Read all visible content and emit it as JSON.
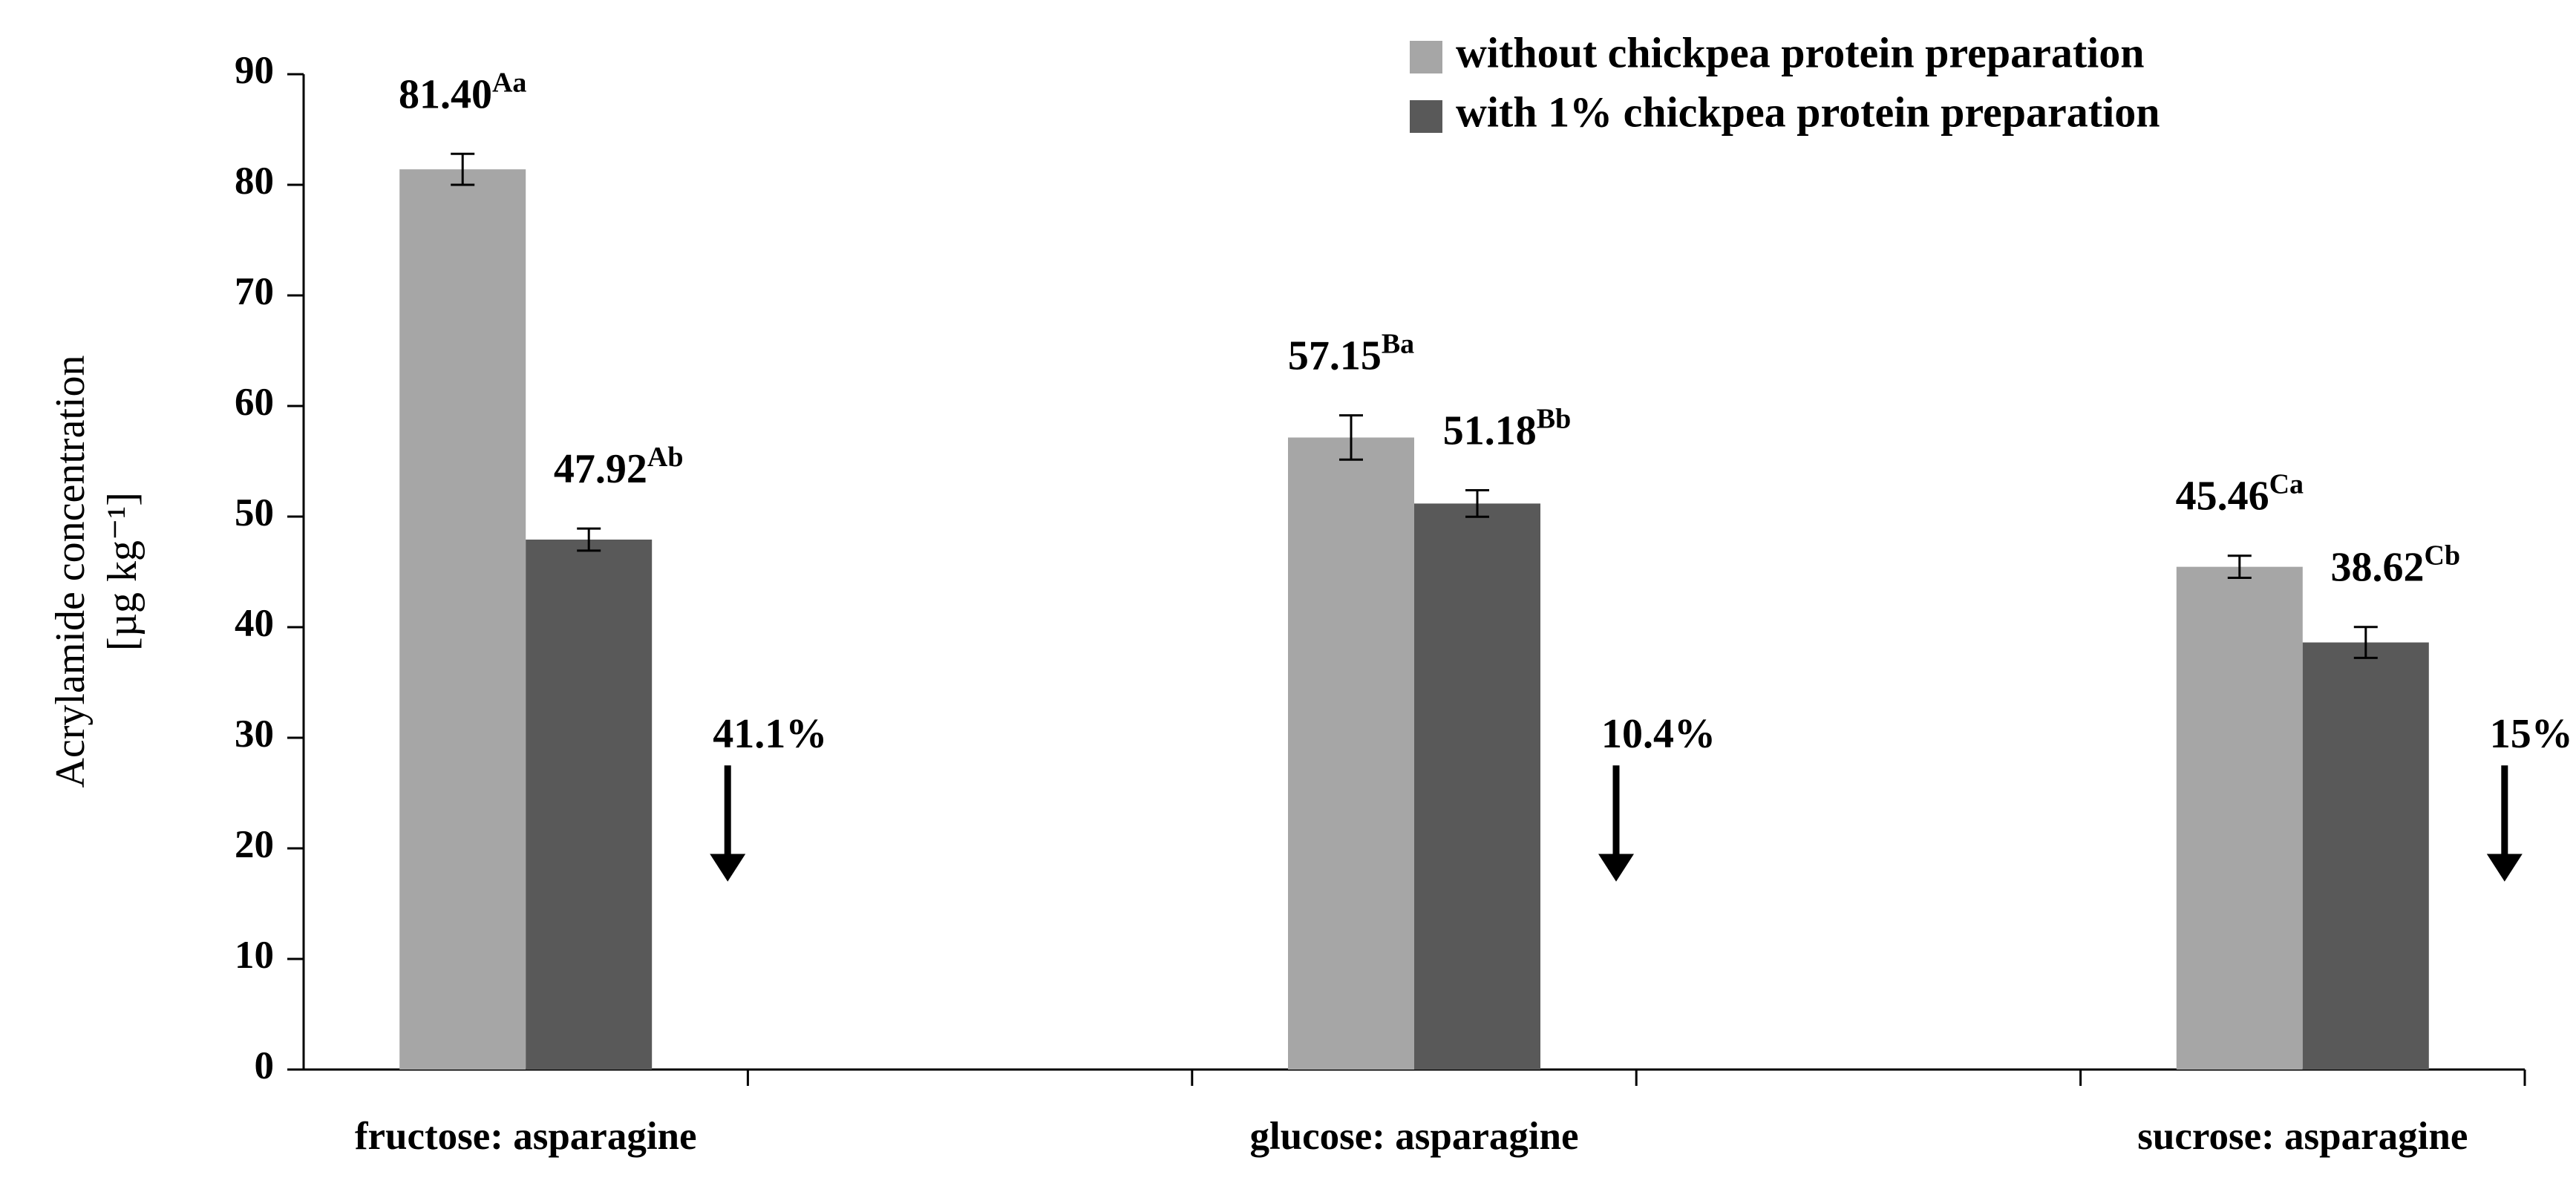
{
  "chart_data": {
    "type": "bar",
    "ylabel": [
      "Acrylamide concentration",
      "[µg kg⁻¹]"
    ],
    "categories": [
      "fructose: asparagine",
      "glucose: asparagine",
      "sucrose: asparagine"
    ],
    "series": [
      {
        "name": "without chickpea protein preparation",
        "color": "#a6a6a6",
        "values": [
          81.4,
          57.15,
          45.46
        ],
        "errors": [
          1.4,
          2.0,
          1.0
        ],
        "value_labels": [
          "81.40",
          "57.15",
          "45.46"
        ],
        "superscripts": [
          "Aa",
          "Ba",
          "Ca"
        ]
      },
      {
        "name": "with 1% chickpea protein preparation",
        "color": "#595959",
        "values": [
          47.92,
          51.18,
          38.62
        ],
        "errors": [
          1.0,
          1.2,
          1.4
        ],
        "value_labels": [
          "47.92",
          "51.18",
          "38.62"
        ],
        "superscripts": [
          "Ab",
          "Bb",
          "Cb"
        ]
      }
    ],
    "annotations": [
      "41.1%",
      "10.4%",
      "15%"
    ],
    "ylim": [
      0,
      90
    ],
    "yticks": [
      0,
      10,
      20,
      30,
      40,
      50,
      60,
      70,
      80,
      90
    ],
    "grid": false
  }
}
